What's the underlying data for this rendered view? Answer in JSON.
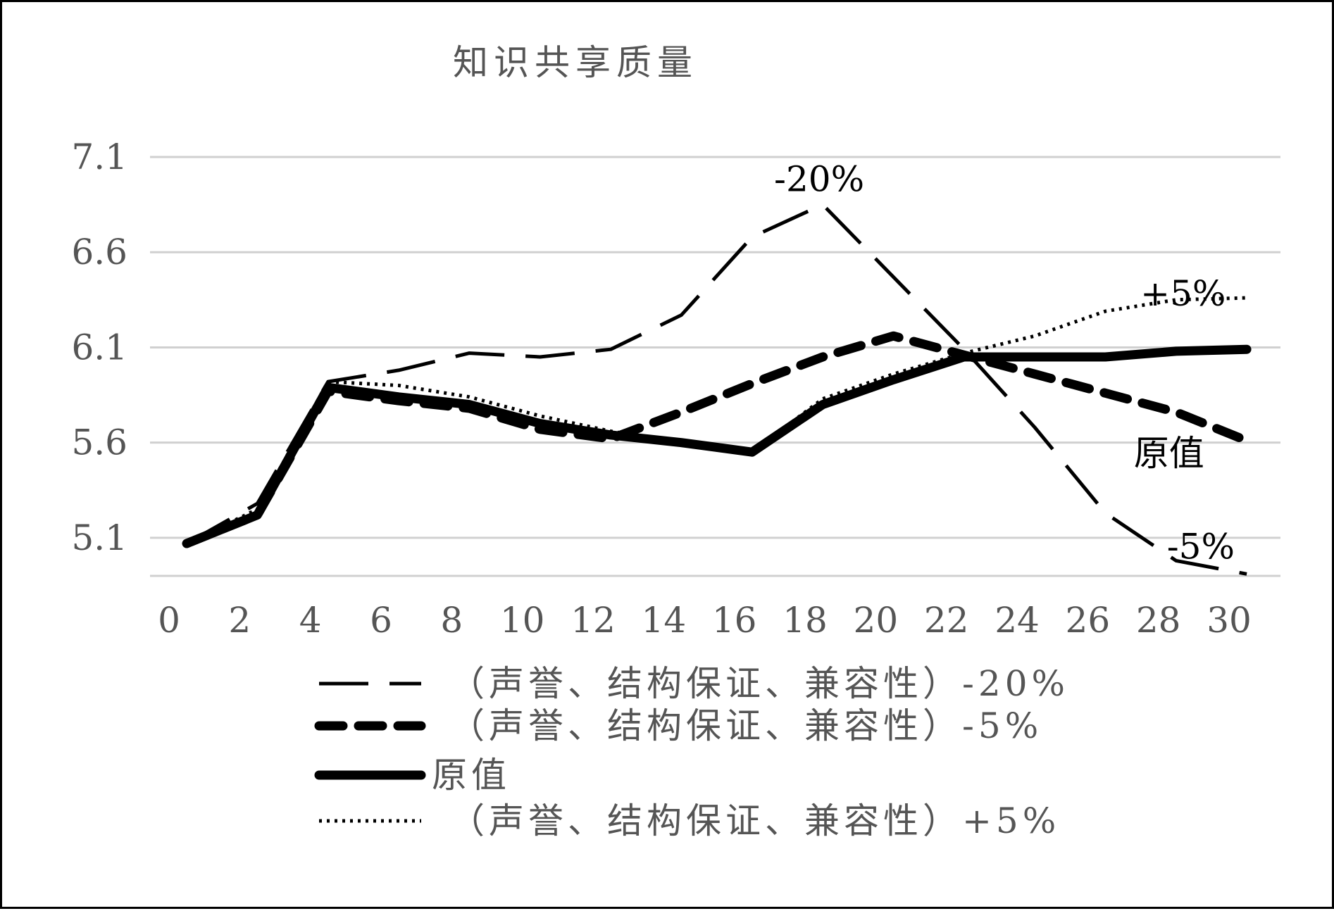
{
  "chart_data": {
    "type": "line",
    "title": "知识共享质量",
    "xlabel": "",
    "ylabel": "",
    "xlim": [
      0,
      30
    ],
    "ylim": [
      4.9,
      7.1
    ],
    "y_ticks": [
      "5.1",
      "5.6",
      "6.1",
      "6.6",
      "7.1"
    ],
    "x_ticks": [
      "0",
      "2",
      "4",
      "6",
      "8",
      "10",
      "12",
      "14",
      "16",
      "18",
      "20",
      "22",
      "24",
      "26",
      "28",
      "30"
    ],
    "grid": true,
    "legend_position": "bottom",
    "x": [
      0.5,
      2.5,
      4.5,
      6.5,
      8.5,
      10.5,
      12.5,
      14.5,
      16.5,
      18.5,
      20.5,
      22.5,
      24.5,
      26.5,
      28.5,
      30.5
    ],
    "series": [
      {
        "name": "（声誉、结构保证、兼容性）-20%",
        "style": "long-dash-thin",
        "values": [
          5.07,
          5.28,
          5.92,
          5.98,
          6.07,
          6.05,
          6.09,
          6.27,
          6.68,
          6.85,
          6.47,
          6.09,
          5.68,
          5.23,
          4.98,
          4.91
        ]
      },
      {
        "name": "（声誉、结构保证、兼容性）-5%",
        "style": "dash-thick",
        "values": [
          5.07,
          5.22,
          5.87,
          5.82,
          5.78,
          5.67,
          5.62,
          5.76,
          5.91,
          6.05,
          6.16,
          6.06,
          5.96,
          5.86,
          5.76,
          5.61
        ]
      },
      {
        "name": "原值",
        "style": "solid-thick",
        "values": [
          5.07,
          5.22,
          5.89,
          5.84,
          5.8,
          5.7,
          5.64,
          5.6,
          5.55,
          5.8,
          5.93,
          6.05,
          6.05,
          6.05,
          6.08,
          6.09
        ]
      },
      {
        "name": "（声誉、结构保证、兼容性）+5%",
        "style": "dotted",
        "values": [
          5.07,
          5.25,
          5.92,
          5.9,
          5.84,
          5.74,
          5.66,
          5.6,
          5.55,
          5.83,
          5.96,
          6.07,
          6.16,
          6.29,
          6.35,
          6.36
        ]
      }
    ],
    "annotations": [
      {
        "text": "-20%",
        "x": 18.4,
        "y": 6.92
      },
      {
        "text": "+5%",
        "x": 28.7,
        "y": 6.32
      },
      {
        "text": "原值",
        "x": 28.3,
        "y": 5.48
      },
      {
        "text": "-5%",
        "x": 29.2,
        "y": 4.99
      }
    ]
  }
}
